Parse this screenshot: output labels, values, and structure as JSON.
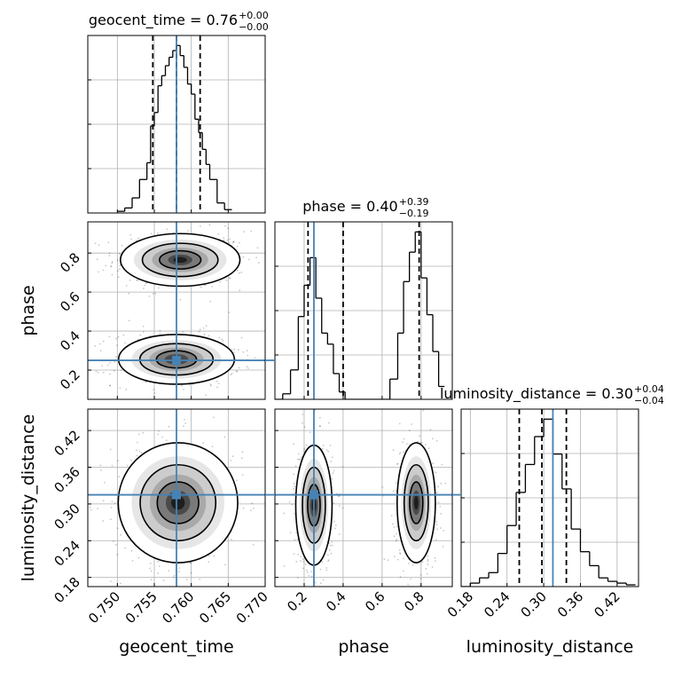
{
  "chart_data": {
    "type": "corner",
    "grid": true,
    "parameters": [
      "geocent_time",
      "phase",
      "luminosity_distance"
    ],
    "truth_color": "#4682b4",
    "truths": {
      "geocent_time": 0.758,
      "phase": 0.25,
      "luminosity_distance": 0.315
    },
    "titles": [
      {
        "param": "geocent_time",
        "name": "geocent_time",
        "median": "0.76",
        "plus": "+0.00",
        "minus": "−0.00"
      },
      {
        "param": "phase",
        "name": "phase",
        "median": "0.40",
        "plus": "+0.39",
        "minus": "−0.19"
      },
      {
        "param": "luminosity_distance",
        "name": "luminosity_distance",
        "median": "0.30",
        "plus": "+0.04",
        "minus": "−0.04"
      }
    ],
    "axes": {
      "geocent_time": {
        "label": "geocent_time",
        "range": [
          0.746,
          0.77
        ],
        "ticks": [
          0.75,
          0.755,
          0.76,
          0.765,
          0.77
        ],
        "tick_labels": [
          "0.750",
          "0.755",
          "0.760",
          "0.765",
          "0.770"
        ]
      },
      "phase": {
        "label": "phase",
        "range": [
          0.05,
          0.96
        ],
        "ticks": [
          0.2,
          0.4,
          0.6,
          0.8
        ],
        "tick_labels": [
          "0.2",
          "0.4",
          "0.6",
          "0.8"
        ]
      },
      "luminosity_distance": {
        "label": "luminosity_distance",
        "range": [
          0.165,
          0.455
        ],
        "ticks": [
          0.18,
          0.24,
          0.3,
          0.36,
          0.42
        ],
        "tick_labels": [
          "0.18",
          "0.24",
          "0.30",
          "0.36",
          "0.42"
        ]
      }
    },
    "histograms": {
      "geocent_time": {
        "edges": [
          0.75,
          0.751,
          0.752,
          0.753,
          0.754,
          0.7545,
          0.755,
          0.7555,
          0.756,
          0.7565,
          0.757,
          0.7575,
          0.758,
          0.7585,
          0.759,
          0.7595,
          0.76,
          0.7605,
          0.761,
          0.7615,
          0.762,
          0.7625,
          0.7635,
          0.7645,
          0.7655
        ],
        "counts": [
          0.01,
          0.03,
          0.09,
          0.2,
          0.3,
          0.52,
          0.6,
          0.76,
          0.82,
          0.88,
          0.93,
          0.97,
          1.0,
          0.94,
          0.87,
          0.77,
          0.71,
          0.56,
          0.48,
          0.38,
          0.29,
          0.2,
          0.06,
          0.02
        ],
        "quantiles": [
          0.7548,
          0.758,
          0.7612
        ]
      },
      "phase": {
        "edges": [
          0.05,
          0.09,
          0.13,
          0.17,
          0.2,
          0.23,
          0.26,
          0.29,
          0.32,
          0.35,
          0.38,
          0.41,
          0.44,
          0.48,
          0.52,
          0.56,
          0.6,
          0.64,
          0.68,
          0.71,
          0.74,
          0.77,
          0.8,
          0.83,
          0.86,
          0.89,
          0.92
        ],
        "counts": [
          0.0,
          0.03,
          0.16,
          0.45,
          0.62,
          0.77,
          0.55,
          0.36,
          0.3,
          0.14,
          0.04,
          0.0,
          0.0,
          0.0,
          0.0,
          0.0,
          0.0,
          0.11,
          0.36,
          0.64,
          0.8,
          0.91,
          0.66,
          0.46,
          0.26,
          0.07
        ],
        "quantiles": [
          0.22,
          0.4,
          0.79
        ]
      },
      "luminosity_distance": {
        "edges": [
          0.165,
          0.18,
          0.195,
          0.21,
          0.225,
          0.24,
          0.255,
          0.27,
          0.285,
          0.3,
          0.315,
          0.33,
          0.345,
          0.36,
          0.375,
          0.39,
          0.405,
          0.42,
          0.435,
          0.45
        ],
        "counts": [
          0.0,
          0.02,
          0.05,
          0.08,
          0.19,
          0.35,
          0.54,
          0.7,
          0.86,
          0.96,
          0.76,
          0.56,
          0.33,
          0.2,
          0.12,
          0.05,
          0.03,
          0.02,
          0.01
        ],
        "quantiles": [
          0.26,
          0.297,
          0.337
        ]
      }
    },
    "blobs": {
      "phase|geocent_time": [
        {
          "cx": 0.7585,
          "cy": 0.765,
          "sx": 0.0033,
          "sy": 0.055,
          "weight": 1.0
        },
        {
          "cx": 0.758,
          "cy": 0.255,
          "sx": 0.0032,
          "sy": 0.052,
          "weight": 0.8
        }
      ],
      "luminosity_distance|geocent_time": [
        {
          "cx": 0.7582,
          "cy": 0.302,
          "sx": 0.0033,
          "sy": 0.04,
          "weight": 1.0
        }
      ],
      "luminosity_distance|phase": [
        {
          "cx": 0.25,
          "cy": 0.298,
          "sx": 0.038,
          "sy": 0.04,
          "weight": 1.0
        },
        {
          "cx": 0.775,
          "cy": 0.302,
          "sx": 0.04,
          "sy": 0.04,
          "weight": 0.95
        }
      ]
    }
  }
}
